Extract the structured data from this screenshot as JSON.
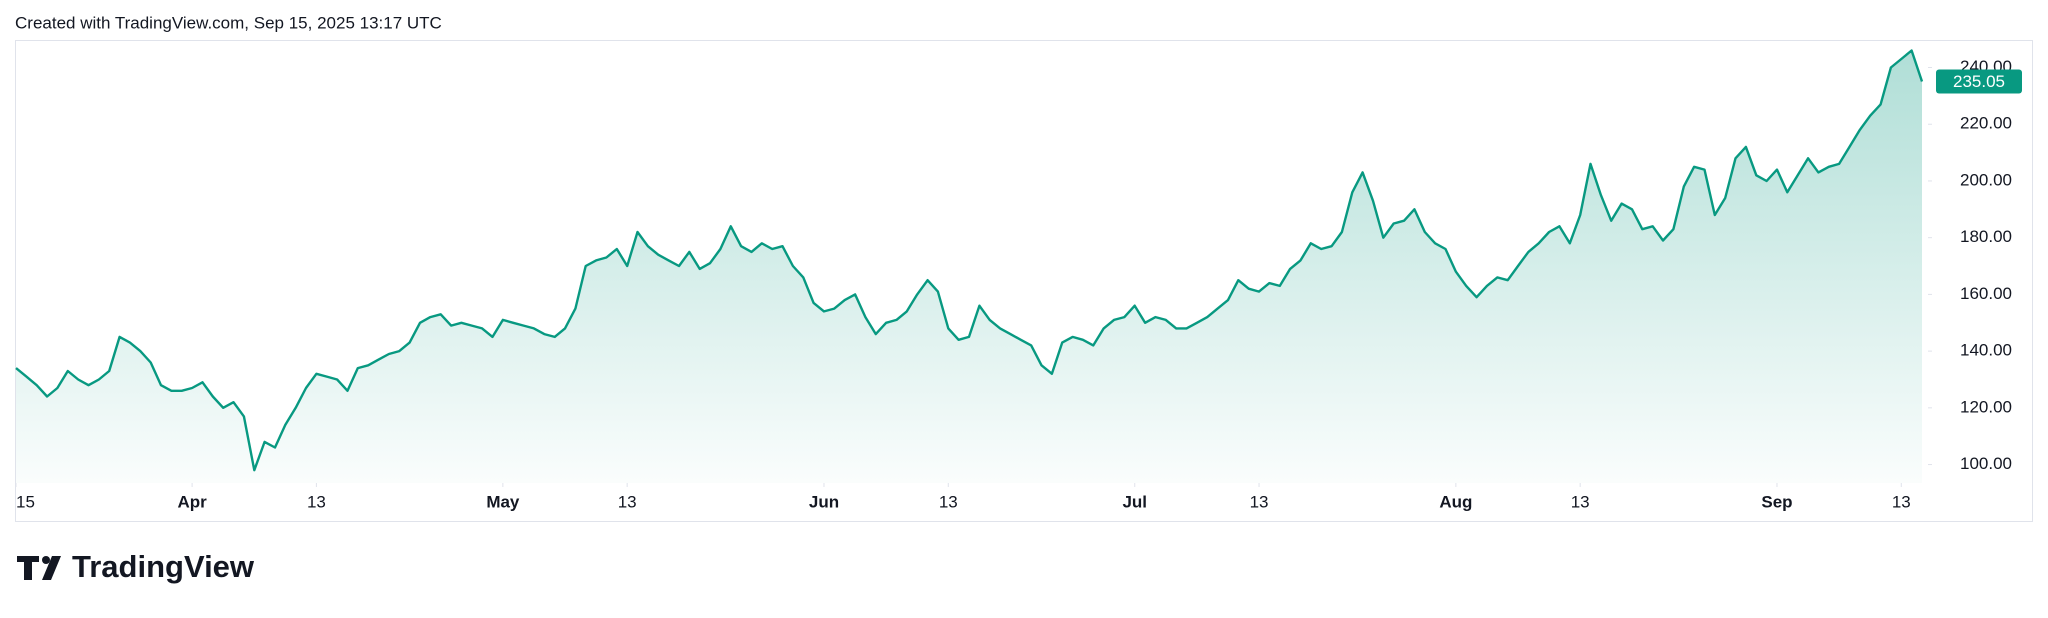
{
  "header": "Created with TradingView.com, Sep 15, 2025 13:17 UTC",
  "logo": "TradingView",
  "chart_data": {
    "type": "area",
    "color": "#089981",
    "values": [
      134,
      131,
      128,
      124,
      127,
      133,
      130,
      128,
      130,
      133,
      145,
      143,
      140,
      136,
      128,
      126,
      126,
      127,
      129,
      124,
      120,
      122,
      117,
      98,
      108,
      106,
      114,
      120,
      127,
      132,
      131,
      130,
      126,
      134,
      135,
      137,
      139,
      140,
      143,
      150,
      152,
      153,
      149,
      150,
      149,
      148,
      145,
      151,
      150,
      149,
      148,
      146,
      145,
      148,
      155,
      170,
      172,
      173,
      176,
      170,
      182,
      177,
      174,
      172,
      170,
      175,
      169,
      171,
      176,
      184,
      177,
      175,
      178,
      176,
      177,
      170,
      166,
      157,
      154,
      155,
      158,
      160,
      152,
      146,
      150,
      151,
      154,
      160,
      165,
      161,
      148,
      144,
      145,
      156,
      151,
      148,
      146,
      144,
      142,
      135,
      132,
      143,
      145,
      144,
      142,
      148,
      151,
      152,
      156,
      150,
      152,
      151,
      148,
      148,
      150,
      152,
      155,
      158,
      165,
      162,
      161,
      164,
      163,
      169,
      172,
      178,
      176,
      177,
      182,
      196,
      203,
      193,
      180,
      185,
      186,
      190,
      182,
      178,
      176,
      168,
      163,
      159,
      163,
      166,
      165,
      170,
      175,
      178,
      182,
      184,
      178,
      188,
      206,
      195,
      186,
      192,
      190,
      183,
      184,
      179,
      183,
      198,
      205,
      204,
      188,
      194,
      208,
      212,
      202,
      200,
      204,
      196,
      202,
      208,
      203,
      205,
      206,
      212,
      218,
      223,
      227,
      240,
      243,
      246,
      235.05
    ],
    "xlim": [
      0,
      184
    ],
    "xticks": [
      {
        "value": 0,
        "label": "15"
      },
      {
        "value": 17,
        "label": "Apr"
      },
      {
        "value": 29,
        "label": "13"
      },
      {
        "value": 47,
        "label": "May"
      },
      {
        "value": 59,
        "label": "13"
      },
      {
        "value": 78,
        "label": "Jun"
      },
      {
        "value": 90,
        "label": "13"
      },
      {
        "value": 108,
        "label": "Jul"
      },
      {
        "value": 120,
        "label": "13"
      },
      {
        "value": 139,
        "label": "Aug"
      },
      {
        "value": 151,
        "label": "13"
      },
      {
        "value": 170,
        "label": "Sep"
      },
      {
        "value": 182,
        "label": "13"
      }
    ],
    "ylim": [
      93.5,
      249.7
    ],
    "yticks": [
      {
        "value": 100,
        "label": "100.00"
      },
      {
        "value": 120,
        "label": "120.00"
      },
      {
        "value": 140,
        "label": "140.00"
      },
      {
        "value": 160,
        "label": "160.00"
      },
      {
        "value": 180,
        "label": "180.00"
      },
      {
        "value": 200,
        "label": "200.00"
      },
      {
        "value": 220,
        "label": "220.00"
      },
      {
        "value": 240,
        "label": "240.00"
      }
    ]
  }
}
